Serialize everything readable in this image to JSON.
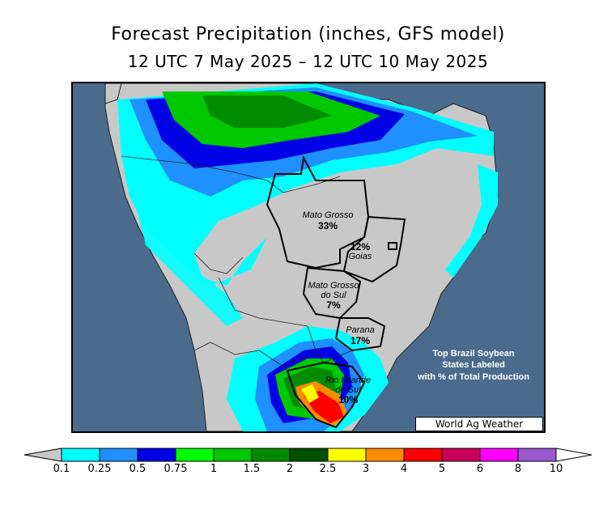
{
  "title": "Forecast Precipitation (inches, GFS model)",
  "subtitle": "12 UTC 7 May 2025 – 12 UTC 10 May 2025",
  "credit": "World Ag Weather",
  "note": [
    "Top Brazil Soybean",
    "States Labeled",
    "with % of Total Production"
  ],
  "states": [
    {
      "name": "Mato Grosso",
      "pct": "33%"
    },
    {
      "name": "Goias",
      "pct": "12%"
    },
    {
      "name": "Mato Grosso do Sul",
      "name_lines": [
        "Mato Grosso",
        "do Sul"
      ],
      "pct": "7%"
    },
    {
      "name": "Parana",
      "pct": "17%"
    },
    {
      "name": "Rio Grande do Sul",
      "name_lines": [
        "Rio Grande",
        "do Sul"
      ],
      "pct": "10%"
    }
  ],
  "legend": {
    "ticks": [
      "0.1",
      "0.25",
      "0.5",
      "0.75",
      "1",
      "1.5",
      "2",
      "2.5",
      "3",
      "4",
      "5",
      "6",
      "8",
      "10"
    ],
    "colors": [
      "#c8c8c8",
      "#00ffff",
      "#1e90ff",
      "#0000e6",
      "#00ff00",
      "#00c800",
      "#008c00",
      "#005000",
      "#ffff00",
      "#ff8c00",
      "#ff0000",
      "#c8005a",
      "#ff00ff",
      "#9b59d0",
      "#ffffff"
    ],
    "units": "inches"
  },
  "colors": {
    "ocean": "#4a6b8c",
    "land_dry": "#c8c8c8"
  }
}
